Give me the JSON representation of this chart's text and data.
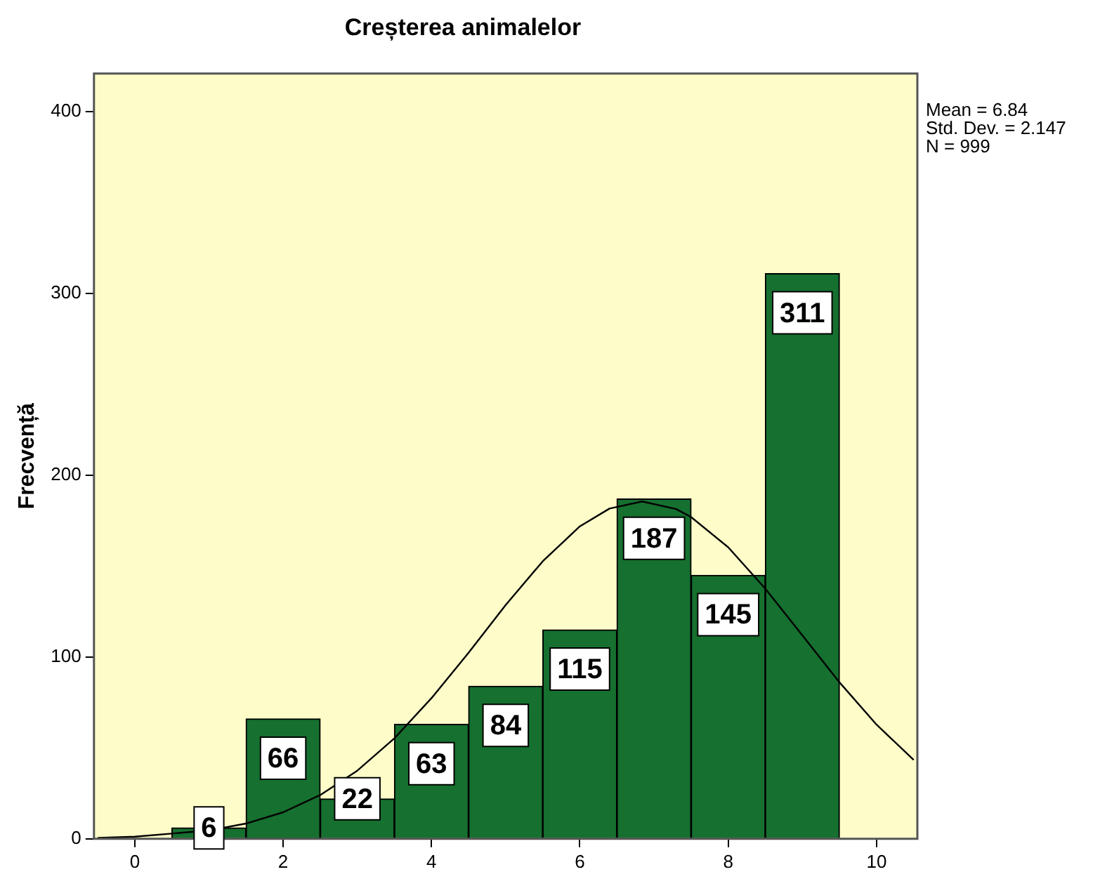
{
  "chart_data": {
    "type": "histogram",
    "title": "Creșterea animalelor",
    "ylabel": "Frecvență",
    "bins": [
      0.5,
      1.5,
      2.5,
      3.5,
      4.5,
      5.5,
      6.5,
      7.5,
      8.5,
      9.5
    ],
    "values": [
      6,
      66,
      22,
      63,
      84,
      115,
      187,
      145,
      311
    ],
    "color": "#16702f",
    "value_labels": [
      "6",
      "66",
      "22",
      "63",
      "84",
      "115",
      "187",
      "145",
      "311"
    ],
    "series": [
      {
        "type": "line",
        "color": "#000000",
        "x": [
          -0.5,
          0,
          1,
          1.5,
          2,
          2.5,
          3,
          3.5,
          4,
          4.5,
          5,
          5.5,
          6,
          6.4,
          6.84,
          7.3,
          7.5,
          8,
          8.5,
          9,
          9.5,
          10,
          10.5
        ],
        "values": [
          0.5,
          1.2,
          4.6,
          8.4,
          14.6,
          24.1,
          37.5,
          55.3,
          77.4,
          102.4,
          128.6,
          152.7,
          171.9,
          181.7,
          185.6,
          181.4,
          177.0,
          160.4,
          137.6,
          111.9,
          86.1,
          62.8,
          43.4
        ]
      }
    ],
    "xlim": [
      -0.55,
      10.55
    ],
    "xticks": [
      0,
      2,
      4,
      6,
      8,
      10
    ],
    "ylim": [
      0,
      421
    ],
    "yticks": [
      0,
      100,
      200,
      300,
      400
    ],
    "grid": false,
    "legend": false,
    "marker": "none",
    "line_style": "solid",
    "annotations": [
      "Mean = 6.84",
      "Std. Dev. = 2.147",
      "N = 999"
    ]
  }
}
